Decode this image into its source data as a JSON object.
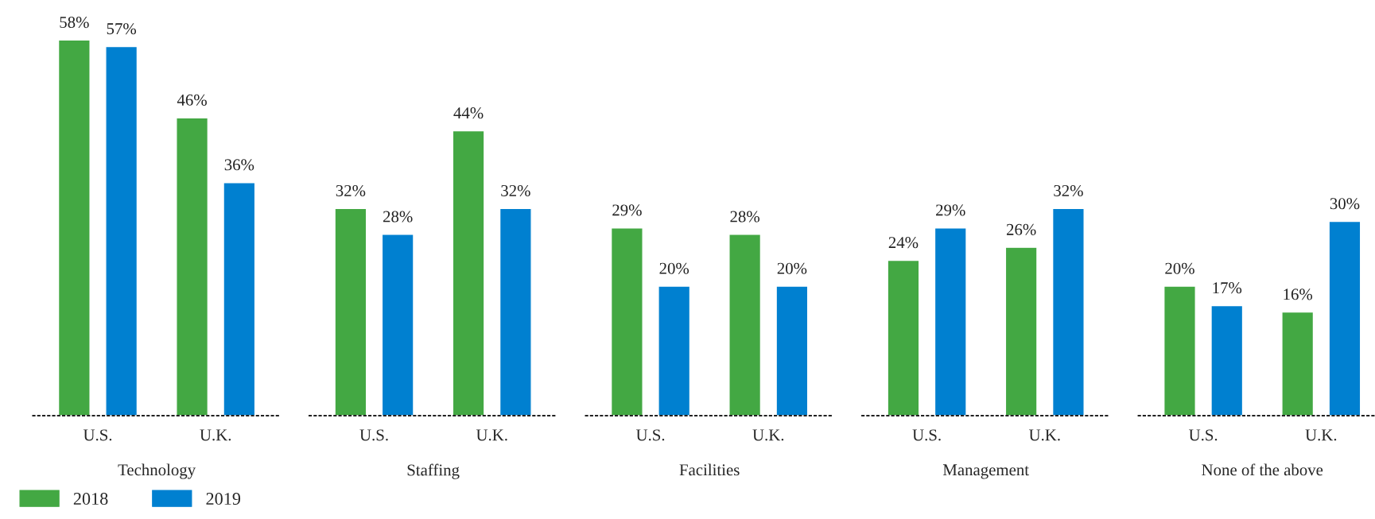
{
  "chart_data": [
    {
      "type": "bar",
      "xlabel": "Technology",
      "categories": [
        "U.S.",
        "U.K."
      ],
      "series": [
        {
          "name": "2018",
          "color": "#43a843",
          "values": [
            58,
            46
          ],
          "value_labels": [
            "58%",
            "46%"
          ]
        },
        {
          "name": "2019",
          "color": "#0080d0",
          "values": [
            57,
            36
          ],
          "value_labels": [
            "57%",
            "36%"
          ]
        }
      ],
      "legend": "bottom left",
      "tick_labels": "x",
      "grid": false
    },
    {
      "type": "bar",
      "xlabel": "Staffing",
      "categories": [
        "U.S.",
        "U.K."
      ],
      "series": [
        {
          "color": "#43a843",
          "values": [
            32,
            44
          ],
          "value_labels": [
            "32%",
            "44%"
          ]
        },
        {
          "color": "#0080d0",
          "values": [
            28,
            32
          ],
          "value_labels": [
            "28%",
            "32%"
          ]
        }
      ],
      "tick_labels": "x",
      "grid": false
    },
    {
      "type": "bar",
      "xlabel": "Facilities",
      "categories": [
        "U.S.",
        "U.K."
      ],
      "series": [
        {
          "color": "#43a843",
          "values": [
            29,
            28
          ],
          "value_labels": [
            "29%",
            "28%"
          ]
        },
        {
          "color": "#0080d0",
          "values": [
            20,
            20
          ],
          "value_labels": [
            "20%",
            "20%"
          ]
        }
      ],
      "tick_labels": "x",
      "grid": false
    },
    {
      "type": "bar",
      "xlabel": "Management",
      "categories": [
        "U.S.",
        "U.K."
      ],
      "series": [
        {
          "color": "#43a843",
          "values": [
            24,
            26
          ],
          "value_labels": [
            "24%",
            "26%"
          ]
        },
        {
          "color": "#0080d0",
          "values": [
            29,
            32
          ],
          "value_labels": [
            "29%",
            "32%"
          ]
        }
      ],
      "tick_labels": "x",
      "grid": false
    },
    {
      "type": "bar",
      "xlabel": "None of the above",
      "categories": [
        "U.S.",
        "U.K."
      ],
      "series": [
        {
          "color": "#43a843",
          "values": [
            20,
            16
          ],
          "value_labels": [
            "20%",
            "16%"
          ]
        },
        {
          "color": "#0080d0",
          "values": [
            17,
            30
          ],
          "value_labels": [
            "17%",
            "30%"
          ]
        }
      ],
      "tick_labels": "x",
      "grid": false
    }
  ]
}
